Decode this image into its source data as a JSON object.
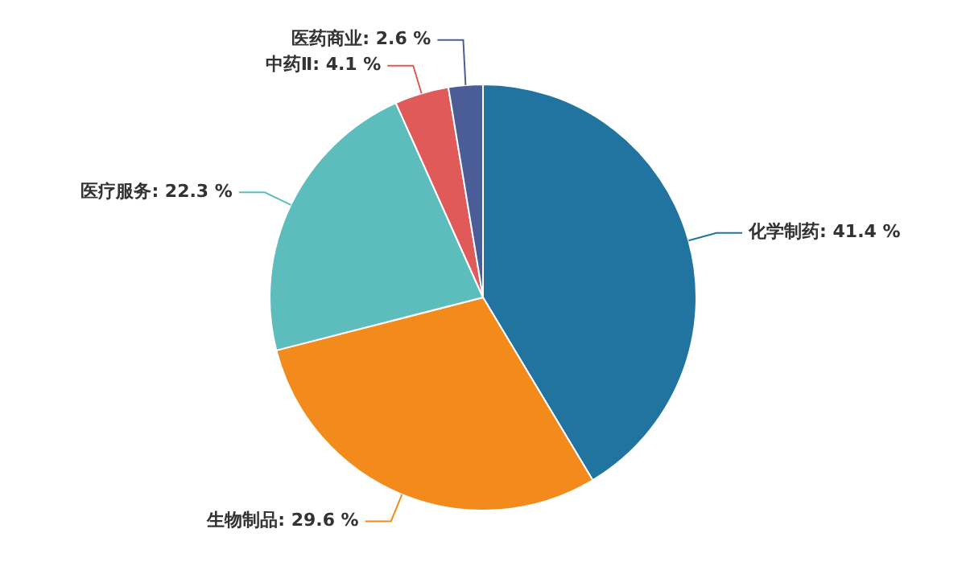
{
  "chart_data": {
    "type": "pie",
    "categories": [
      "化学制药",
      "生物制品",
      "医疗服务",
      "中药Ⅱ",
      "医药商业"
    ],
    "values": [
      41.4,
      29.6,
      22.3,
      4.1,
      2.6
    ],
    "colors": [
      "#21749f",
      "#f28a1c",
      "#5dbdbd",
      "#e05a5a",
      "#4b5d96"
    ],
    "value_labels": [
      "41.4 %",
      "29.6 %",
      "22.3 %",
      "4.1 %",
      "2.6 %"
    ],
    "legend": false
  }
}
